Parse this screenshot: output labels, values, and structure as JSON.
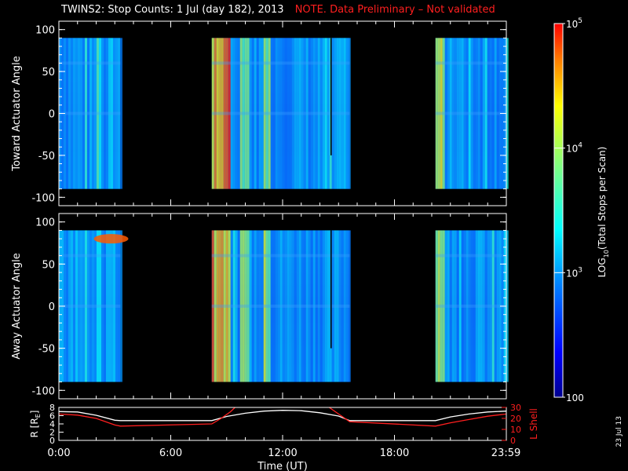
{
  "header": {
    "title": "TWINS2: Stop Counts:  1 Jul (day 182), 2013",
    "note": "NOTE. Data Preliminary – Not validated",
    "note_color": "#ff1f1f"
  },
  "stamp": "23 Jul 13",
  "chart_data": [
    {
      "type": "heatmap",
      "panel": "top",
      "ylabel": "Toward Actuator Angle",
      "ylim": [
        -110,
        110
      ],
      "yticks": [
        "100",
        "50",
        "0",
        "-50",
        "-100"
      ],
      "ytick_values": [
        100,
        50,
        0,
        -50,
        -100
      ],
      "angle_range": [
        -90,
        90
      ],
      "data_intervals_hours": [
        [
          0.0,
          3.3
        ],
        [
          8.2,
          15.6
        ],
        [
          20.2,
          24.0
        ]
      ],
      "colorbar": {
        "label": "LOG10(Total Stops per Scan)",
        "label_main": "LOG",
        "label_sub": "10",
        "label_rest": "(Total Stops per Scan)",
        "range": [
          100,
          100000
        ],
        "scale": "log",
        "ticks": [
          {
            "value": 100000,
            "base": "10",
            "exp": "5"
          },
          {
            "value": 10000,
            "base": "10",
            "exp": "4"
          },
          {
            "value": 1000,
            "base": "10",
            "exp": "3"
          },
          {
            "value": 100,
            "text": "100"
          }
        ]
      }
    },
    {
      "type": "heatmap",
      "panel": "middle",
      "ylabel": "Away Actuator Angle",
      "ylim": [
        -110,
        110
      ],
      "yticks": [
        "100",
        "50",
        "0",
        "-50",
        "-100"
      ],
      "ytick_values": [
        100,
        50,
        0,
        -50,
        -100
      ],
      "angle_range": [
        -90,
        90
      ],
      "data_intervals_hours": [
        [
          0.0,
          3.3
        ],
        [
          8.2,
          15.6
        ],
        [
          20.2,
          24.0
        ]
      ]
    },
    {
      "type": "line",
      "panel": "bottom",
      "xlabel": "Time (UT)",
      "xticks": [
        "0:00",
        "6:00",
        "12:00",
        "18:00",
        "23:59"
      ],
      "xtick_values": [
        0,
        6,
        12,
        18,
        23.98
      ],
      "xlim": [
        0,
        24
      ],
      "ylabel_left": "R [RE]",
      "ylabel_left_main": "R [R",
      "ylabel_left_sub": "E",
      "ylabel_left_end": "]",
      "ylim_left": [
        0,
        8
      ],
      "yticks_left": [
        "0",
        "2",
        "4",
        "6",
        "8"
      ],
      "ylabel_right": "L Shell",
      "ylim_right": [
        0,
        30
      ],
      "yticks_right": [
        "0",
        "10",
        "20",
        "30"
      ],
      "series": [
        {
          "name": "R [RE]",
          "axis": "left",
          "color": "#ffffff",
          "x": [
            0,
            1,
            2,
            3,
            3.3,
            8.2,
            9,
            10,
            11,
            12,
            13,
            14,
            15,
            15.6,
            20.2,
            21,
            22,
            23,
            24
          ],
          "y": [
            7.0,
            6.9,
            6.1,
            4.9,
            4.8,
            4.8,
            5.8,
            6.6,
            7.1,
            7.3,
            7.2,
            6.7,
            5.9,
            4.8,
            4.8,
            5.7,
            6.4,
            6.9,
            7.1
          ]
        },
        {
          "name": "L Shell",
          "axis": "right",
          "color": "#ff1f1f",
          "x": [
            0,
            1,
            2,
            3,
            3.3,
            8.2,
            8.7,
            9.2,
            9.45
          ],
          "y": [
            24,
            23,
            20,
            14,
            13,
            15,
            20,
            26,
            30
          ]
        },
        {
          "name": "L Shell",
          "axis": "right",
          "color": "#ff1f1f",
          "x": [
            14.5,
            15.0,
            15.6,
            20.2,
            21,
            22,
            23,
            24
          ],
          "y": [
            30,
            24,
            17,
            13,
            16,
            19,
            22,
            24
          ]
        }
      ]
    }
  ]
}
